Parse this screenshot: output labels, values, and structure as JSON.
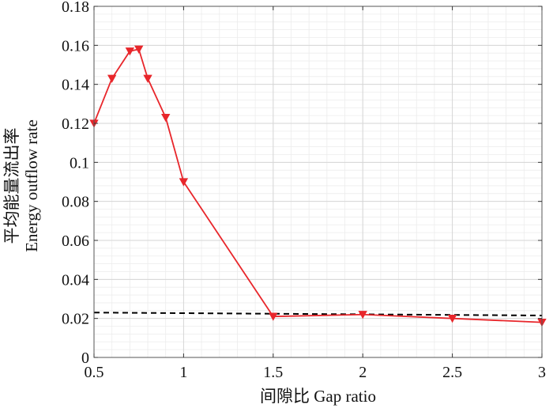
{
  "chart_data": {
    "type": "line",
    "xlabel": "间隙比 Gap ratio",
    "ylabel_cn": "平均能量流出率",
    "ylabel_en": "Energy outflow rate",
    "xlim": [
      0.5,
      3
    ],
    "ylim": [
      0,
      0.18
    ],
    "x_ticks": [
      0.5,
      1,
      1.5,
      2,
      2.5,
      3
    ],
    "x_tick_labels": [
      "0.5",
      "1",
      "1.5",
      "2",
      "2.5",
      "3"
    ],
    "y_ticks": [
      0,
      0.02,
      0.04,
      0.06,
      0.08,
      0.1,
      0.12,
      0.14,
      0.16,
      0.18
    ],
    "y_tick_labels": [
      "0",
      "0.02",
      "0.04",
      "0.06",
      "0.08",
      "0.1",
      "0.12",
      "0.14",
      "0.16",
      "0.18"
    ],
    "grid": true,
    "series": [
      {
        "marker": "triangle-down",
        "color": "#e8262b",
        "x": [
          0.5,
          0.6,
          0.7,
          0.75,
          0.8,
          0.9,
          1.0,
          1.5,
          2.0,
          2.5,
          3.0
        ],
        "y": [
          0.12,
          0.143,
          0.157,
          0.158,
          0.143,
          0.123,
          0.09,
          0.021,
          0.022,
          0.02,
          0.018
        ]
      }
    ],
    "reference_line": {
      "style": "dashed",
      "color": "#000000",
      "x": [
        0.5,
        3.0
      ],
      "y": [
        0.023,
        0.0215
      ]
    }
  }
}
